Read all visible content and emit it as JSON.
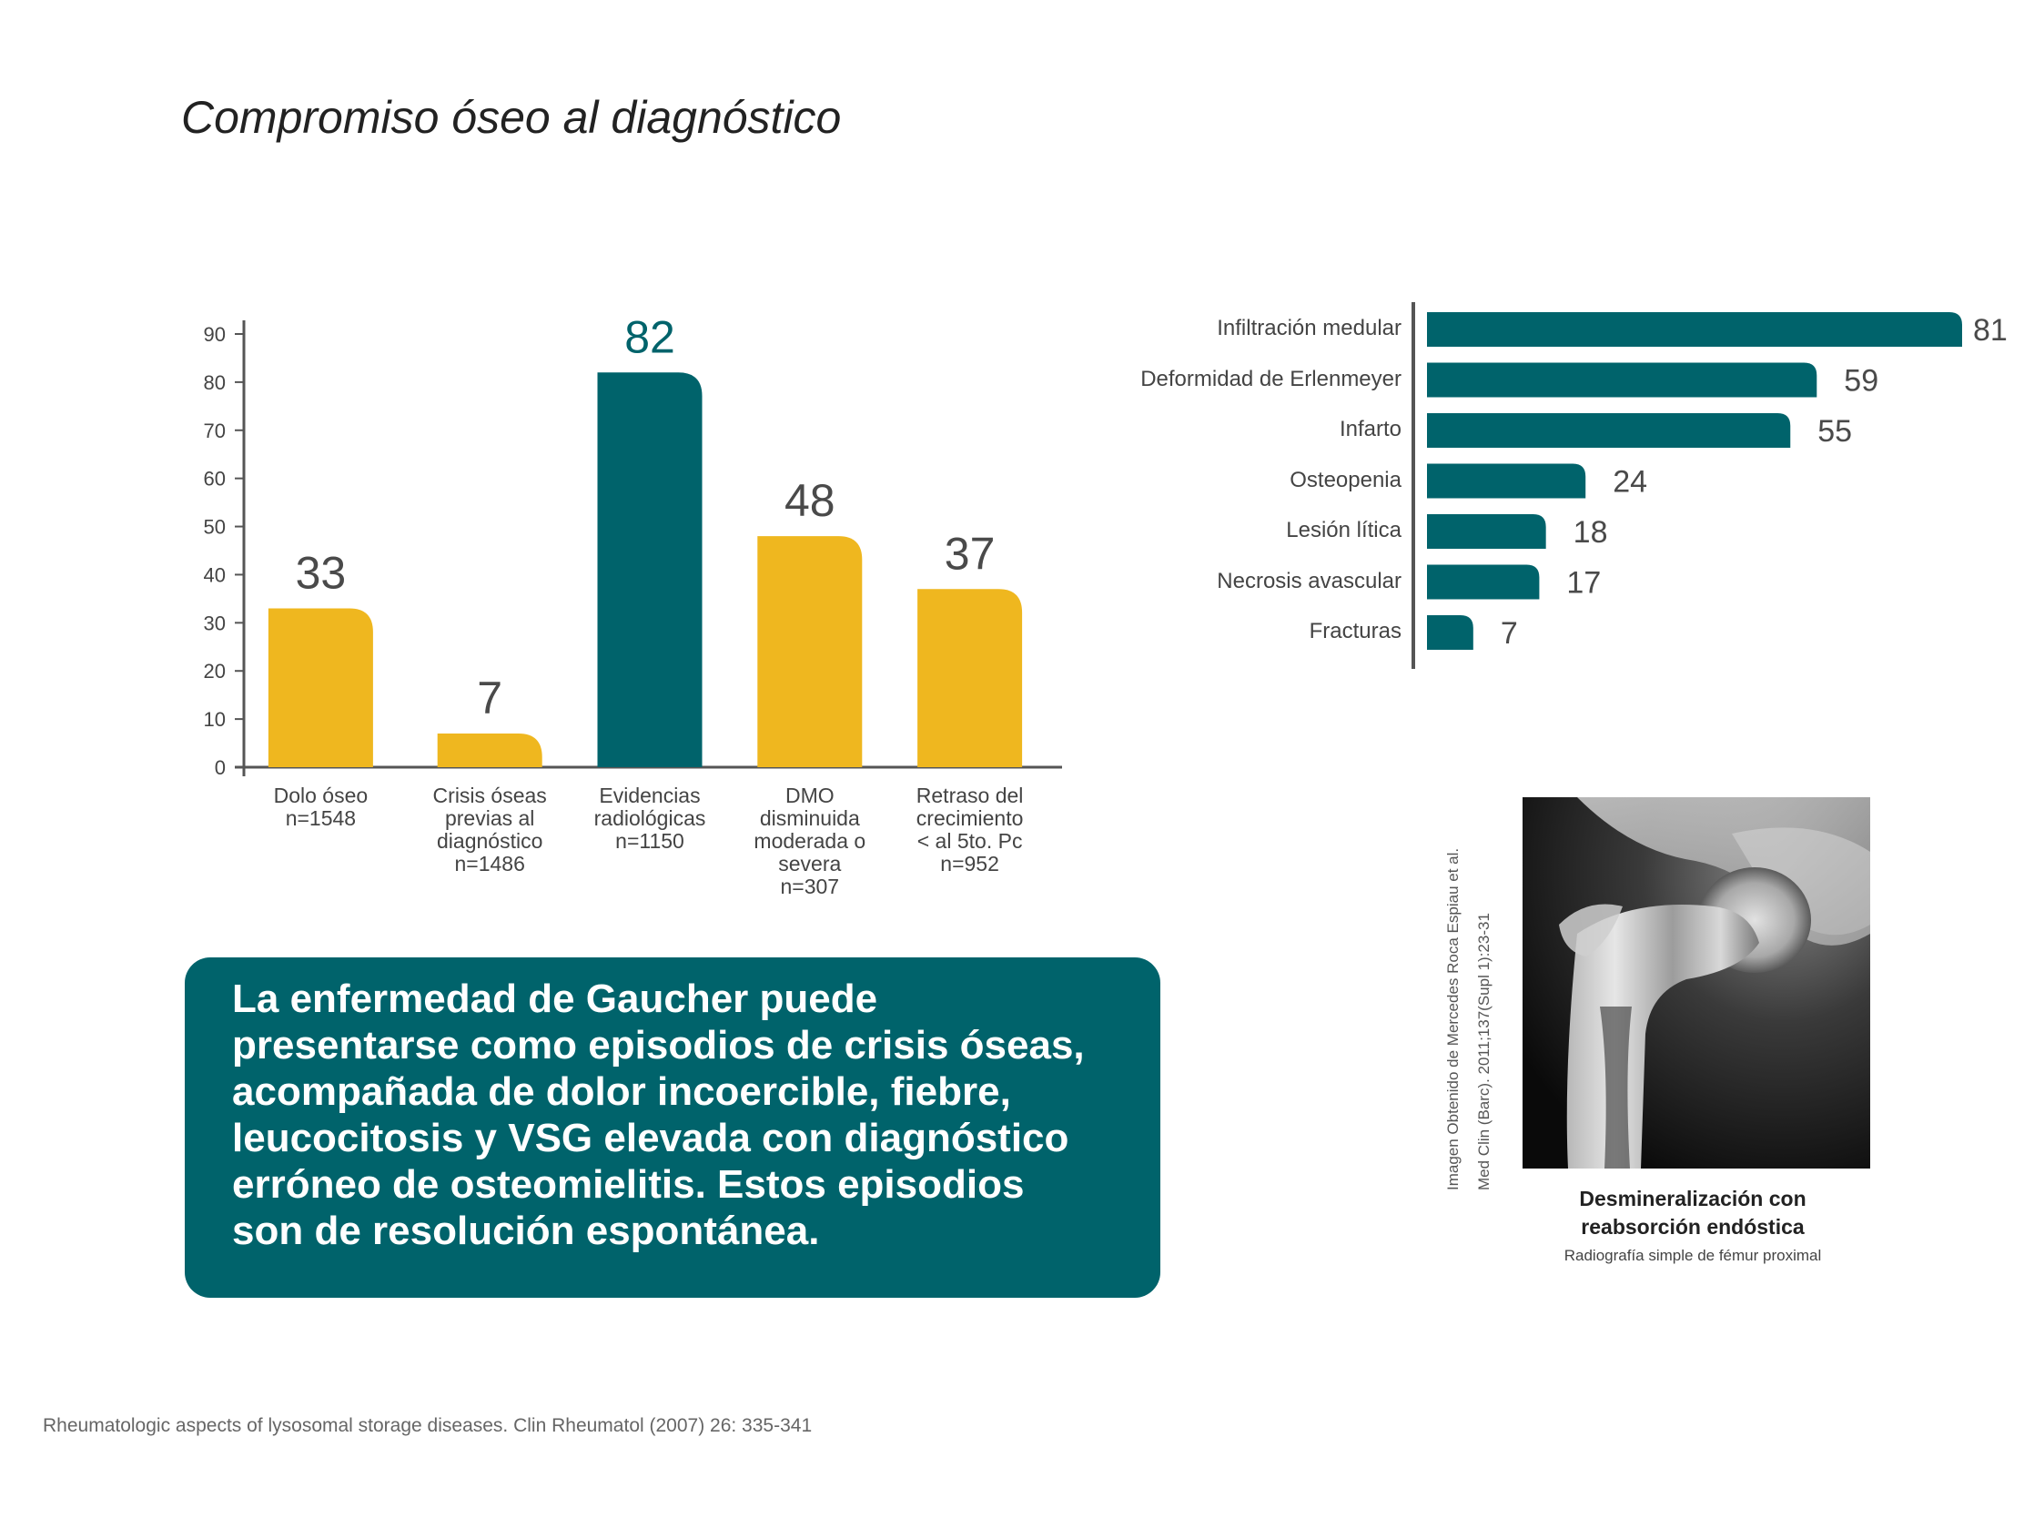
{
  "title": "Compromiso óseo al diagnóstico",
  "colors": {
    "yellow": "#efb71f",
    "teal": "#00636b",
    "axis": "#555555",
    "value_text": "#4a4a4a"
  },
  "chart_data": [
    {
      "type": "bar",
      "categories": [
        [
          "Dolo óseo",
          "n=1548"
        ],
        [
          "Crisis óseas",
          "previas al",
          "diagnóstico",
          "n=1486"
        ],
        [
          "Evidencias",
          "radiológicas",
          "n=1150"
        ],
        [
          "DMO",
          "disminuida",
          "moderada o",
          "severa",
          "n=307"
        ],
        [
          "Retraso del",
          "crecimiento",
          "< al 5to. Pc",
          "n=952"
        ]
      ],
      "values": [
        33,
        7,
        82,
        48,
        37
      ],
      "highlight_index": 2,
      "ylim": [
        0,
        90
      ],
      "yticks": [
        0,
        10,
        20,
        30,
        40,
        50,
        60,
        70,
        80,
        90
      ],
      "xlabel": "",
      "ylabel": ""
    },
    {
      "type": "bar",
      "orientation": "horizontal",
      "categories": [
        "Infiltración medular",
        "Deformidad de Erlenmeyer",
        "Infarto",
        "Osteopenia",
        "Lesión lítica",
        "Necrosis avascular",
        "Fracturas"
      ],
      "values": [
        81,
        59,
        55,
        24,
        18,
        17,
        7
      ]
    }
  ],
  "info_box": {
    "lines": [
      "La enfermedad de Gaucher puede",
      "presentarse como episodios de crisis óseas,",
      "acompañada de dolor incoercible, fiebre,",
      "leucocitosis y VSG elevada con diagnóstico",
      "erróneo de osteomielitis. Estos episodios",
      "son de resolución espontánea."
    ]
  },
  "image_credit": {
    "line1": "Imagen Obtenido de Mercedes Roca Espiau et al.",
    "line2": "Med Clin (Barc). 2011;137(Supl 1):23-31"
  },
  "image_caption": {
    "title_line1": "Desmineralización con",
    "title_line2": "reabsorción endóstica",
    "subtitle": "Radiografía simple de fémur proximal"
  },
  "source": "Rheumatologic aspects of lysosomal storage diseases. Clin Rheumatol (2007) 26: 335-341"
}
